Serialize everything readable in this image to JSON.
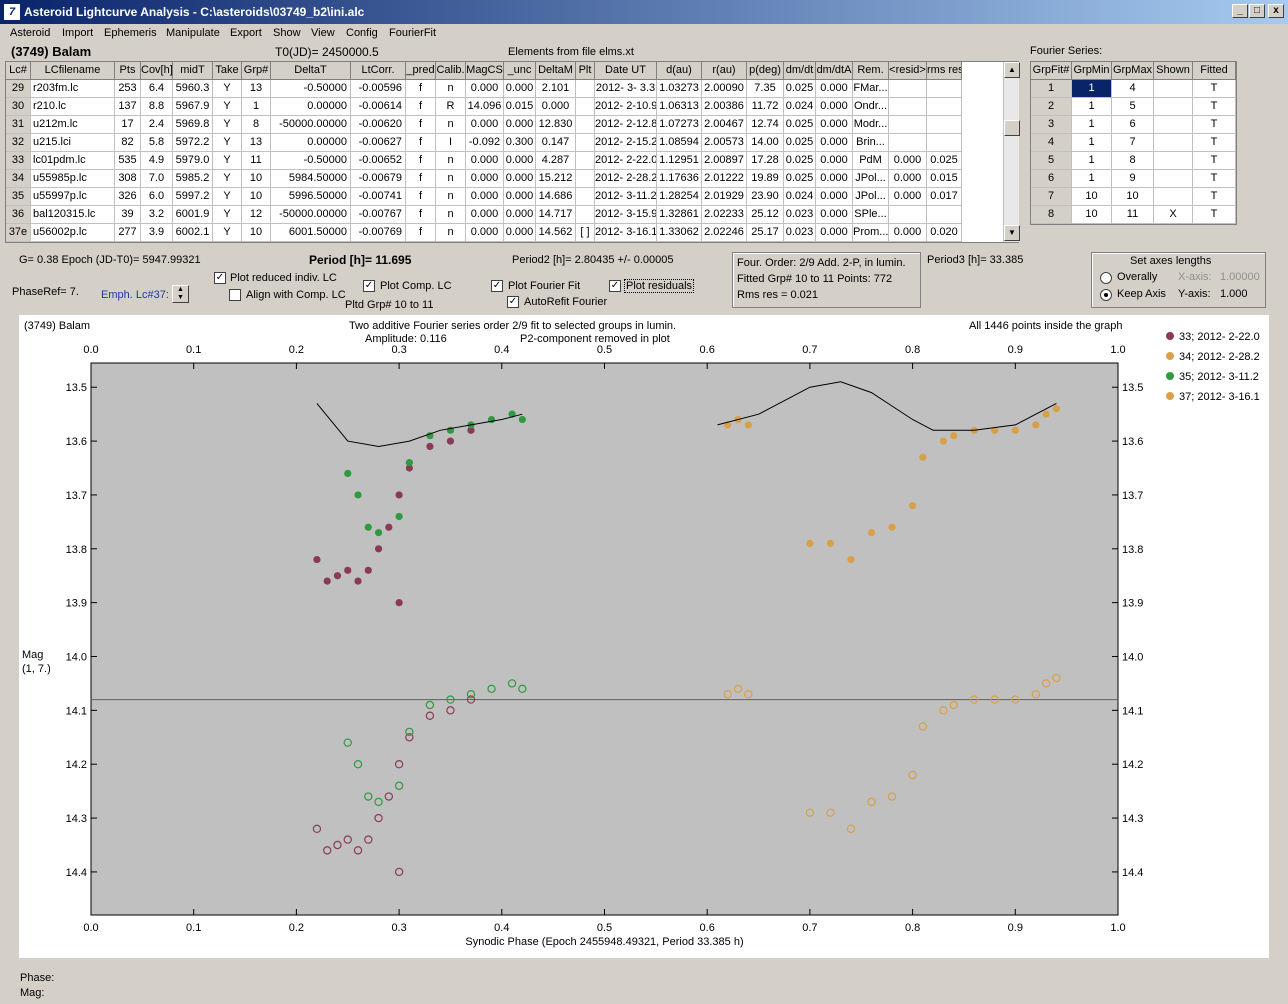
{
  "window": {
    "title": "Asteroid Lightcurve Analysis - C:\\asteroids\\03749_b2\\ini.alc",
    "app_icon": "7",
    "controls": [
      "_",
      "□",
      "x"
    ]
  },
  "menu": [
    "Asteroid",
    "Import",
    "Ephemeris",
    "Manipulate",
    "Export",
    "Show",
    "View",
    "Config",
    "FourierFit"
  ],
  "header": {
    "asteroid": "(3749) Balam",
    "t0": "T0(JD)= 2450000.5",
    "elements": "Elements from file elms.xt",
    "fourier_title": "Fourier Series:"
  },
  "lc_table": {
    "columns": [
      "Lc#",
      "LCfilename",
      "Pts",
      "Cov[h]",
      "midT",
      "Take",
      "Grp#",
      "DeltaT",
      "LtCorr.",
      "_pred",
      "Calib.",
      "MagCS",
      "_unc",
      "DeltaM",
      "Plt",
      "Date UT",
      "d(au)",
      "r(au)",
      "p(deg)",
      "dm/dt",
      "dm/dtA",
      "Rem.",
      "<resid>",
      "rms res"
    ],
    "rows": [
      [
        "29",
        "r203fm.lc",
        "253",
        "6.4",
        "5960.3",
        "Y",
        "13",
        "-0.50000",
        "-0.00596",
        "f",
        "n",
        "0.000",
        "0.000",
        "2.101",
        "",
        "2012- 3- 3.3",
        "1.03273",
        "2.00090",
        "7.35",
        "0.025",
        "0.000",
        "FMar...",
        "",
        ""
      ],
      [
        "30",
        "r210.lc",
        "137",
        "8.8",
        "5967.9",
        "Y",
        "1",
        "0.00000",
        "-0.00614",
        "f",
        "R",
        "14.096",
        "0.015",
        "0.000",
        "",
        "2012- 2-10.9",
        "1.06313",
        "2.00386",
        "11.72",
        "0.024",
        "0.000",
        "Ondr...",
        "",
        ""
      ],
      [
        "31",
        "u212m.lc",
        "17",
        "2.4",
        "5969.8",
        "Y",
        "8",
        "-50000.00000",
        "-0.00620",
        "f",
        "n",
        "0.000",
        "0.000",
        "12.830",
        "",
        "2012- 2-12.8",
        "1.07273",
        "2.00467",
        "12.74",
        "0.025",
        "0.000",
        "Modr...",
        "",
        ""
      ],
      [
        "32",
        "u215.lci",
        "82",
        "5.8",
        "5972.2",
        "Y",
        "13",
        "0.00000",
        "-0.00627",
        "f",
        "I",
        "-0.092",
        "0.300",
        "0.147",
        "",
        "2012- 2-15.2",
        "1.08594",
        "2.00573",
        "14.00",
        "0.025",
        "0.000",
        "Brin...",
        "",
        ""
      ],
      [
        "33",
        "lc01pdm.lc",
        "535",
        "4.9",
        "5979.0",
        "Y",
        "11",
        "-0.50000",
        "-0.00652",
        "f",
        "n",
        "0.000",
        "0.000",
        "4.287",
        "",
        "2012- 2-22.0",
        "1.12951",
        "2.00897",
        "17.28",
        "0.025",
        "0.000",
        "PdM",
        "0.000",
        "0.025"
      ],
      [
        "34",
        "u55985p.lc",
        "308",
        "7.0",
        "5985.2",
        "Y",
        "10",
        "5984.50000",
        "-0.00679",
        "f",
        "n",
        "0.000",
        "0.000",
        "15.212",
        "",
        "2012- 2-28.2",
        "1.17636",
        "2.01222",
        "19.89",
        "0.025",
        "0.000",
        "JPol...",
        "0.000",
        "0.015"
      ],
      [
        "35",
        "u55997p.lc",
        "326",
        "6.0",
        "5997.2",
        "Y",
        "10",
        "5996.50000",
        "-0.00741",
        "f",
        "n",
        "0.000",
        "0.000",
        "14.686",
        "",
        "2012- 3-11.2",
        "1.28254",
        "2.01929",
        "23.90",
        "0.024",
        "0.000",
        "JPol...",
        "0.000",
        "0.017"
      ],
      [
        "36",
        "bal120315.lc",
        "39",
        "3.2",
        "6001.9",
        "Y",
        "12",
        "-50000.00000",
        "-0.00767",
        "f",
        "n",
        "0.000",
        "0.000",
        "14.717",
        "",
        "2012- 3-15.9",
        "1.32861",
        "2.02233",
        "25.12",
        "0.023",
        "0.000",
        "SPle...",
        "",
        ""
      ],
      [
        "37e",
        "u56002p.lc",
        "277",
        "3.9",
        "6002.1",
        "Y",
        "10",
        "6001.50000",
        "-0.00769",
        "f",
        "n",
        "0.000",
        "0.000",
        "14.562",
        "[ ]",
        "2012- 3-16.1",
        "1.33062",
        "2.02246",
        "25.17",
        "0.023",
        "0.000",
        "Prom...",
        "0.000",
        "0.020"
      ]
    ]
  },
  "fourier_table": {
    "columns": [
      "GrpFit#",
      "GrpMin",
      "GrpMax",
      "Shown",
      "Fitted"
    ],
    "rows": [
      [
        "1",
        "1",
        "4",
        "",
        "T"
      ],
      [
        "2",
        "1",
        "5",
        "",
        "T"
      ],
      [
        "3",
        "1",
        "6",
        "",
        "T"
      ],
      [
        "4",
        "1",
        "7",
        "",
        "T"
      ],
      [
        "5",
        "1",
        "8",
        "",
        "T"
      ],
      [
        "6",
        "1",
        "9",
        "",
        "T"
      ],
      [
        "7",
        "10",
        "10",
        "",
        "T"
      ],
      [
        "8",
        "10",
        "11",
        "X",
        "T"
      ]
    ]
  },
  "controls": {
    "g_epoch": "G= 0.38   Epoch (JD-T0)= 5947.99321",
    "period": "Period [h]= 11.695",
    "period2": "Period2 [h]= 2.80435 +/- 0.00005",
    "period3": "Period3 [h]= 33.385",
    "phaseref": "PhaseRef= 7.",
    "emph": "Emph. Lc#37:",
    "plot_reduced": "Plot reduced indiv. LC",
    "align_comp": "Align with Comp. LC",
    "plot_comp": "Plot Comp. LC",
    "pltd_grp": "Pltd Grp#  10 to   11",
    "plot_fourier": "Plot Fourier Fit",
    "autorefit": "AutoRefit Fourier",
    "plot_residuals": "Plot residuals",
    "check_reduced": "✓",
    "check_align": "",
    "check_comp": "✓",
    "check_fourier": "✓",
    "check_autorefit": "✓",
    "check_residuals": "✓",
    "info1": "Four. Order:  2/9      Add. 2-P, in lumin.",
    "info2": "Fitted Grp# 10 to 11 Points: 772",
    "info3": "Rms res      = 0.021",
    "axes_title": "Set axes lengths",
    "overally": "Overally",
    "keep_axis": "Keep Axis",
    "xaxis_label": "X-axis:",
    "xaxis_val": "1.00000",
    "yaxis_label": "Y-axis:",
    "yaxis_val": "1.000"
  },
  "plot": {
    "name": "(3749) Balam",
    "header1": "Two additive Fourier series order 2/9 fit to selected groups in lumin.",
    "header2a": "Amplitude: 0.116",
    "header2b": "P2-component removed in plot",
    "inside": "All 1446 points inside the graph",
    "ylabel1": "Mag",
    "ylabel2": "(1, 7.)",
    "xlabel": "Synodic Phase (Epoch 2455948.49321, Period 33.385 h)",
    "legend": [
      {
        "label": "33; 2012- 2-22.0",
        "color": "#8b3a55"
      },
      {
        "label": "34; 2012- 2-28.2",
        "color": "#d9a04a"
      },
      {
        "label": "35; 2012- 3-11.2",
        "color": "#2f9a40"
      },
      {
        "label": "37; 2012- 3-16.1",
        "color": "#d9a04a"
      }
    ]
  },
  "status": {
    "phase": "Phase:",
    "mag": "Mag:"
  },
  "chart_data": {
    "type": "scatter",
    "x_ticks": [
      "0.0",
      "0.1",
      "0.2",
      "0.3",
      "0.4",
      "0.5",
      "0.6",
      "0.7",
      "0.8",
      "0.9",
      "1.0"
    ],
    "y_ticks": [
      "13.5",
      "13.6",
      "13.7",
      "13.8",
      "13.9",
      "14.0",
      "14.1",
      "14.2",
      "14.3",
      "14.4"
    ],
    "xlim": [
      0,
      1
    ],
    "ylim": [
      13.48,
      14.48
    ],
    "inverted_y": true,
    "residual_line": 14.08,
    "series": [
      {
        "name": "33; 2012- 2-22.0",
        "color": "#8b3a55",
        "points": [
          [
            0.22,
            13.82
          ],
          [
            0.23,
            13.86
          ],
          [
            0.24,
            13.85
          ],
          [
            0.25,
            13.84
          ],
          [
            0.26,
            13.86
          ],
          [
            0.27,
            13.84
          ],
          [
            0.28,
            13.8
          ],
          [
            0.29,
            13.76
          ],
          [
            0.3,
            13.7
          ],
          [
            0.31,
            13.65
          ],
          [
            0.33,
            13.61
          ],
          [
            0.35,
            13.6
          ],
          [
            0.37,
            13.58
          ],
          [
            0.3,
            13.9
          ]
        ]
      },
      {
        "name": "34; 2012- 2-28.2",
        "color": "#d9a04a",
        "points": [
          [
            0.62,
            13.57
          ],
          [
            0.63,
            13.56
          ],
          [
            0.64,
            13.57
          ],
          [
            0.7,
            13.79
          ],
          [
            0.72,
            13.79
          ],
          [
            0.74,
            13.82
          ],
          [
            0.76,
            13.77
          ],
          [
            0.78,
            13.76
          ],
          [
            0.8,
            13.72
          ],
          [
            0.81,
            13.63
          ],
          [
            0.83,
            13.6
          ],
          [
            0.86,
            13.58
          ],
          [
            0.9,
            13.58
          ],
          [
            0.93,
            13.55
          ]
        ]
      },
      {
        "name": "35; 2012- 3-11.2",
        "color": "#2f9a40",
        "points": [
          [
            0.25,
            13.66
          ],
          [
            0.26,
            13.7
          ],
          [
            0.27,
            13.76
          ],
          [
            0.28,
            13.77
          ],
          [
            0.3,
            13.74
          ],
          [
            0.31,
            13.64
          ],
          [
            0.33,
            13.59
          ],
          [
            0.35,
            13.58
          ],
          [
            0.37,
            13.57
          ],
          [
            0.39,
            13.56
          ],
          [
            0.41,
            13.55
          ],
          [
            0.42,
            13.56
          ]
        ]
      },
      {
        "name": "37; 2012- 3-16.1",
        "color": "#d9a04a",
        "points": [
          [
            0.84,
            13.59
          ],
          [
            0.88,
            13.58
          ],
          [
            0.92,
            13.57
          ],
          [
            0.94,
            13.54
          ]
        ]
      }
    ],
    "fourier_curves": [
      {
        "x": [
          0.22,
          0.25,
          0.28,
          0.31,
          0.34,
          0.37,
          0.4,
          0.42
        ],
        "y": [
          13.53,
          13.6,
          13.61,
          13.6,
          13.58,
          13.57,
          13.56,
          13.55
        ]
      },
      {
        "x": [
          0.61,
          0.65,
          0.7,
          0.73,
          0.76,
          0.8,
          0.82,
          0.86,
          0.9,
          0.94
        ],
        "y": [
          13.57,
          13.55,
          13.5,
          13.49,
          13.51,
          13.56,
          13.58,
          13.58,
          13.57,
          13.53
        ]
      }
    ]
  }
}
